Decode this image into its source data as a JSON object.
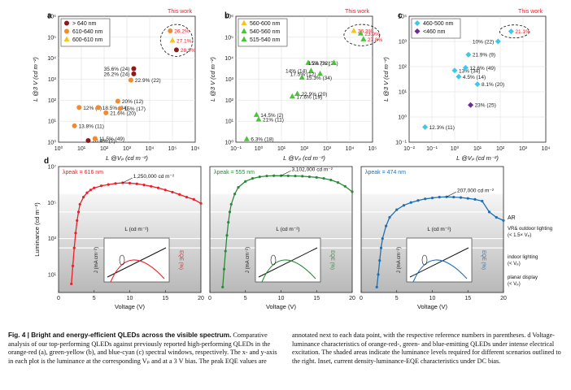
{
  "figure": {
    "panels": {
      "a": {
        "letter": "a",
        "this_work": "This work",
        "legend": [
          "> 640 nm",
          "610-640 nm",
          "600-610 nm"
        ]
      },
      "b": {
        "letter": "b",
        "this_work": "This work",
        "legend": [
          "560-600 nm",
          "540-560 nm",
          "515-540 nm"
        ]
      },
      "c": {
        "letter": "c",
        "this_work": "This work",
        "legend": [
          "460-500 nm",
          "<460 nm"
        ]
      },
      "d": {
        "letter": "d"
      }
    },
    "ylabel_top": "L @3 V (cd m⁻²)",
    "xlabel_top": "L @Vₚ (cd m⁻²)",
    "d_ylabel": "Luminance (cd m⁻²)",
    "d_xlabel": "Voltage (V)",
    "inset_top_label": "L (cd m⁻²)",
    "inset_j_label": "J (mA cm⁻²)",
    "inset_eqe_label": "EQE (%)",
    "peak_labels": [
      "λpeak = 616 nm",
      "λpeak = 555 nm",
      "λpeak = 474 nm"
    ],
    "max_lum": [
      "1,250,000 cd m⁻²",
      "3,102,000 cd m⁻²",
      "207,000 cd m⁻²"
    ],
    "regions": [
      "AR",
      "VR& outdoor lighting (< 1.5× Vₚ)",
      "indoor lighting (< Vₚ)",
      "planar display (< Vₚ)"
    ],
    "colors": {
      "red": "#e8202a",
      "dark_red": "#8b1a1a",
      "orange": "#f28a30",
      "yellow": "#f5c518",
      "green": "#2a8a3a",
      "lime": "#4cc43a",
      "cyan": "#3cc8e8",
      "purple": "#6a2a9a",
      "blue": "#1f6fb5"
    }
  },
  "chart_data": [
    {
      "type": "scatter",
      "panel": "a",
      "xlabel": "L @Vₚ (cd m⁻²)",
      "ylabel": "L @3 V (cd m⁻²)",
      "xscale": "log",
      "yscale": "log",
      "xlim": [
        1,
        1000000
      ],
      "ylim": [
        1,
        1000000
      ],
      "x_ticks": [
        "10⁰",
        "10¹",
        "10²",
        "10³",
        "10⁴",
        "10⁵",
        "10⁶"
      ],
      "y_ticks": [
        "10⁰",
        "10¹",
        "10²",
        "10³",
        "10⁴",
        "10⁵",
        "10⁶"
      ],
      "points": [
        {
          "x": 20,
          "y": 1.2,
          "c": "dark_red",
          "label": "20.4% (1)"
        },
        {
          "x": 40,
          "y": 1.5,
          "c": "orange",
          "label": "11.5% (49)"
        },
        {
          "x": 5,
          "y": 6,
          "c": "orange",
          "label": "13.8% (11)"
        },
        {
          "x": 8,
          "y": 45,
          "c": "orange",
          "label": "12% (2)"
        },
        {
          "x": 55,
          "y": 45,
          "c": "orange",
          "label": "18.5% (34)"
        },
        {
          "x": 400,
          "y": 90,
          "c": "orange",
          "label": "20% (12)"
        },
        {
          "x": 120,
          "y": 25,
          "c": "orange",
          "label": "21.6% (20)"
        },
        {
          "x": 500,
          "y": 40,
          "c": "orange",
          "label": "15% (17)"
        },
        {
          "x": 2000,
          "y": 3200,
          "c": "dark_red",
          "label": "35.6% (24)"
        },
        {
          "x": 2000,
          "y": 1800,
          "c": "dark_red",
          "label": "26.2% (24)"
        },
        {
          "x": 1500,
          "y": 900,
          "c": "orange",
          "label": "22.9% (22)"
        },
        {
          "x": 80000,
          "y": 200000,
          "c": "orange",
          "label": "26.2%"
        },
        {
          "x": 100000,
          "y": 70000,
          "c": "yellow",
          "label": "27.1%"
        },
        {
          "x": 150000,
          "y": 25000,
          "c": "dark_red",
          "label": "28.9%"
        }
      ]
    },
    {
      "type": "scatter",
      "panel": "b",
      "xlabel": "L @Vₚ (cd m⁻²)",
      "ylabel": "L @3 V (cd m⁻²)",
      "xscale": "log",
      "yscale": "log",
      "xlim": [
        0.1,
        100000
      ],
      "ylim": [
        1,
        1000000
      ],
      "x_ticks": [
        "10⁻¹",
        "10⁰",
        "10¹",
        "10²",
        "10³",
        "10⁴",
        "10⁵"
      ],
      "y_ticks": [
        "10⁰",
        "10¹",
        "10²",
        "10³",
        "10⁴",
        "10⁵",
        "10⁶"
      ],
      "points": [
        {
          "x": 0.3,
          "y": 1.4,
          "c": "lime",
          "label": "6.3% (18)"
        },
        {
          "x": 1,
          "y": 12,
          "c": "lime",
          "label": "21% (11)"
        },
        {
          "x": 0.8,
          "y": 20,
          "c": "lime",
          "label": "14.5% (2)"
        },
        {
          "x": 30,
          "y": 150,
          "c": "lime",
          "label": "17.6% (19)"
        },
        {
          "x": 50,
          "y": 200,
          "c": "lime",
          "label": "22.9% (20)"
        },
        {
          "x": 80,
          "y": 1200,
          "c": "lime",
          "label": "15.3% (34)"
        },
        {
          "x": 200,
          "y": 2500,
          "c": "lime",
          "label": "14% (14)"
        },
        {
          "x": 500,
          "y": 1800,
          "c": "lime",
          "label": "17.5% (12)"
        },
        {
          "x": 150,
          "y": 6000,
          "c": "lime",
          "label": "28.7% (21)"
        },
        {
          "x": 2000,
          "y": 6000,
          "c": "lime",
          "label": "15% (22)"
        },
        {
          "x": 15000,
          "y": 200000,
          "c": "yellow",
          "label": "26.3%"
        },
        {
          "x": 30000,
          "y": 150000,
          "c": "lime",
          "label": "23.9%"
        },
        {
          "x": 40000,
          "y": 80000,
          "c": "lime",
          "label": "27.8%"
        }
      ]
    },
    {
      "type": "scatter",
      "panel": "c",
      "xlabel": "L @Vₚ (cd m⁻²)",
      "ylabel": "L @3 V (cd m⁻²)",
      "xscale": "log",
      "yscale": "log",
      "xlim": [
        0.01,
        10000
      ],
      "ylim": [
        0.1,
        10000
      ],
      "x_ticks": [
        "10⁻²",
        "10⁻¹",
        "10⁰",
        "10¹",
        "10²",
        "10³",
        "10⁴"
      ],
      "y_ticks": [
        "10⁻¹",
        "10⁰",
        "10¹",
        "10²",
        "10³",
        "10⁴"
      ],
      "points": [
        {
          "x": 0.05,
          "y": 0.4,
          "c": "cyan",
          "label": "12.3% (11)"
        },
        {
          "x": 1,
          "y": 70,
          "c": "cyan",
          "label": "13% (34)"
        },
        {
          "x": 1.5,
          "y": 40,
          "c": "cyan",
          "label": "4.5% (14)"
        },
        {
          "x": 3,
          "y": 90,
          "c": "cyan",
          "label": "12.6% (49)"
        },
        {
          "x": 4,
          "y": 300,
          "c": "cyan",
          "label": "21.9% (9)"
        },
        {
          "x": 10,
          "y": 20,
          "c": "cyan",
          "label": "8.1% (20)"
        },
        {
          "x": 5,
          "y": 3,
          "c": "purple",
          "label": "23% (25)"
        },
        {
          "x": 80,
          "y": 1000,
          "c": "cyan",
          "label": "10% (22)"
        },
        {
          "x": 300,
          "y": 2500,
          "c": "cyan",
          "label": "21.1%"
        }
      ]
    },
    {
      "type": "line",
      "panel": "d",
      "xlabel": "Voltage (V)",
      "ylabel": "Luminance (cd m⁻²)",
      "xlim": [
        0,
        20
      ],
      "yscale": "log",
      "ylim": [
        1,
        10000000
      ],
      "x_ticks": [
        "0",
        "5",
        "10",
        "15",
        "20"
      ],
      "y_ticks": [
        "10¹",
        "10³",
        "10⁵",
        "10⁷"
      ],
      "series": [
        {
          "name": "λpeak = 616 nm",
          "color": "red",
          "x": [
            1.8,
            2,
            2.2,
            2.4,
            2.6,
            2.8,
            3,
            3.5,
            4,
            4.5,
            5,
            6,
            7,
            8,
            9,
            10,
            11,
            12,
            13,
            14,
            15,
            16,
            17,
            18,
            19,
            20
          ],
          "y": [
            3,
            30,
            300,
            2000,
            10000,
            30000,
            80000,
            200000,
            350000,
            500000,
            650000,
            850000,
            1000000,
            1150000,
            1250000,
            1200000,
            1100000,
            950000,
            800000,
            650000,
            500000,
            380000,
            280000,
            200000,
            150000,
            90000
          ]
        },
        {
          "name": "λpeak = 555 nm",
          "color": "green",
          "x": [
            1.8,
            2,
            2.2,
            2.4,
            2.6,
            2.8,
            3,
            3.5,
            4,
            5,
            6,
            7,
            8,
            9,
            10,
            11,
            12,
            13,
            14,
            15,
            16,
            17,
            18,
            19,
            20
          ],
          "y": [
            2,
            20,
            200,
            1500,
            8000,
            30000,
            80000,
            300000,
            700000,
            1500000,
            2200000,
            2700000,
            3000000,
            3100000,
            3102000,
            3050000,
            3000000,
            2900000,
            2700000,
            2500000,
            2200000,
            1800000,
            1300000,
            800000,
            400000
          ]
        },
        {
          "name": "λpeak = 474 nm",
          "color": "blue",
          "x": [
            2.2,
            2.4,
            2.6,
            2.8,
            3,
            3.5,
            4,
            5,
            6,
            7,
            8,
            9,
            10,
            11,
            12,
            13,
            14,
            15,
            16,
            17,
            18,
            19,
            20
          ],
          "y": [
            2,
            10,
            60,
            300,
            1000,
            5000,
            15000,
            40000,
            70000,
            100000,
            130000,
            160000,
            180000,
            200000,
            207000,
            200000,
            190000,
            170000,
            150000,
            120000,
            30000,
            15000,
            10000
          ]
        }
      ]
    }
  ],
  "caption": {
    "label": "Fig. 4 | Bright and energy-efficient QLEDs across the visible spectrum.",
    "body": "Comparative analysis of our top-performing QLEDs against previously reported high-performing QLEDs in the orange-red (a), green-yellow (b), and blue-cyan (c) spectral windows, respectively. The x- and y-axis in each plot is the luminance at the corresponding Vₚ and at a 3 V bias. The peak EQE values are annotated next to each data point, with the respective reference numbers in parentheses. d Voltage-luminance characteristics of orange-red-, green- and blue-emitting QLEDs under intense electrical excitation. The shaded areas indicate the luminance levels required for different scenarios outlined to the right. Inset, current density-luminance-EQE characteristics under DC bias."
  }
}
